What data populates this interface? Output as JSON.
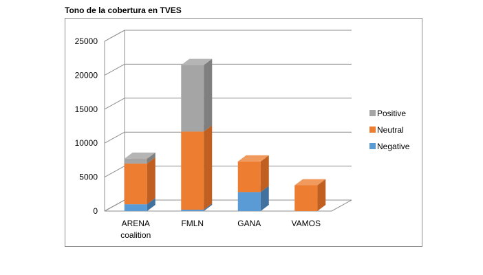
{
  "chart_data": {
    "type": "bar",
    "stacked": true,
    "three_d": true,
    "title": "Tono de la cobertura en TVES",
    "xlabel": "",
    "ylabel": "",
    "categories": [
      "ARENA coalition",
      "FMLN",
      "GANA",
      "VAMOS"
    ],
    "category_lines": [
      [
        "ARENA",
        "coalition"
      ],
      [
        "FMLN"
      ],
      [
        "GANA"
      ],
      [
        "VAMOS"
      ]
    ],
    "ylim": [
      0,
      25000
    ],
    "yticks": [
      "0",
      "5000",
      "10000",
      "15000",
      "20000",
      "25000"
    ],
    "ytick_values": [
      0,
      5000,
      10000,
      15000,
      20000,
      25000
    ],
    "grid": true,
    "legend_position": "right",
    "series": [
      {
        "name": "Negative",
        "color": "#5B9BD5",
        "side": "#41729F",
        "top": "#7FB1E0",
        "values": [
          1000,
          200,
          2800,
          0
        ]
      },
      {
        "name": "Neutral",
        "color": "#ED7D31",
        "side": "#C05F1F",
        "top": "#F19A5E",
        "values": [
          6000,
          11500,
          4500,
          3800
        ]
      },
      {
        "name": "Positive",
        "color": "#A5A5A5",
        "side": "#7F7F7F",
        "top": "#B5B5B5",
        "values": [
          700,
          9800,
          0,
          0
        ]
      }
    ],
    "legend_order": [
      "Positive",
      "Neutral",
      "Negative"
    ]
  }
}
